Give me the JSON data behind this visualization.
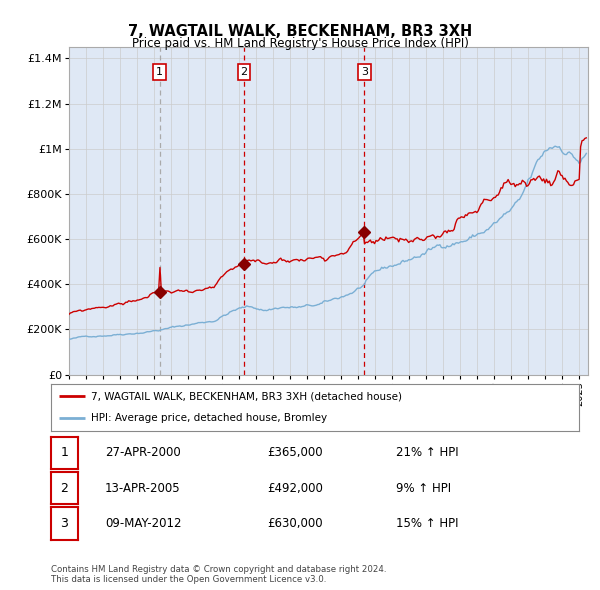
{
  "title": "7, WAGTAIL WALK, BECKENHAM, BR3 3XH",
  "subtitle": "Price paid vs. HM Land Registry's House Price Index (HPI)",
  "legend_line1": "7, WAGTAIL WALK, BECKENHAM, BR3 3XH (detached house)",
  "legend_line2": "HPI: Average price, detached house, Bromley",
  "transactions": [
    {
      "num": 1,
      "date": "27-APR-2000",
      "price": 365000,
      "pct": "21%",
      "direction": "↑",
      "label": "HPI"
    },
    {
      "num": 2,
      "date": "13-APR-2005",
      "price": 492000,
      "pct": "9%",
      "direction": "↑",
      "label": "HPI"
    },
    {
      "num": 3,
      "date": "09-MAY-2012",
      "price": 630000,
      "pct": "15%",
      "direction": "↑",
      "label": "HPI"
    }
  ],
  "transaction_years": [
    2000.32,
    2005.28,
    2012.36
  ],
  "transaction_prices": [
    365000,
    492000,
    630000
  ],
  "hpi_line_color": "#7bafd4",
  "price_line_color": "#cc0000",
  "marker_color": "#880000",
  "shade_color": "#dfe8f5",
  "grid_color": "#cccccc",
  "footer": "Contains HM Land Registry data © Crown copyright and database right 2024.\nThis data is licensed under the Open Government Licence v3.0.",
  "ylim": [
    0,
    1450000
  ],
  "yticks": [
    0,
    200000,
    400000,
    600000,
    800000,
    1000000,
    1200000,
    1400000
  ],
  "ytick_labels": [
    "£0",
    "£200K",
    "£400K",
    "£600K",
    "£800K",
    "£1M",
    "£1.2M",
    "£1.4M"
  ],
  "xstart": 1995,
  "xend": 2025.5
}
